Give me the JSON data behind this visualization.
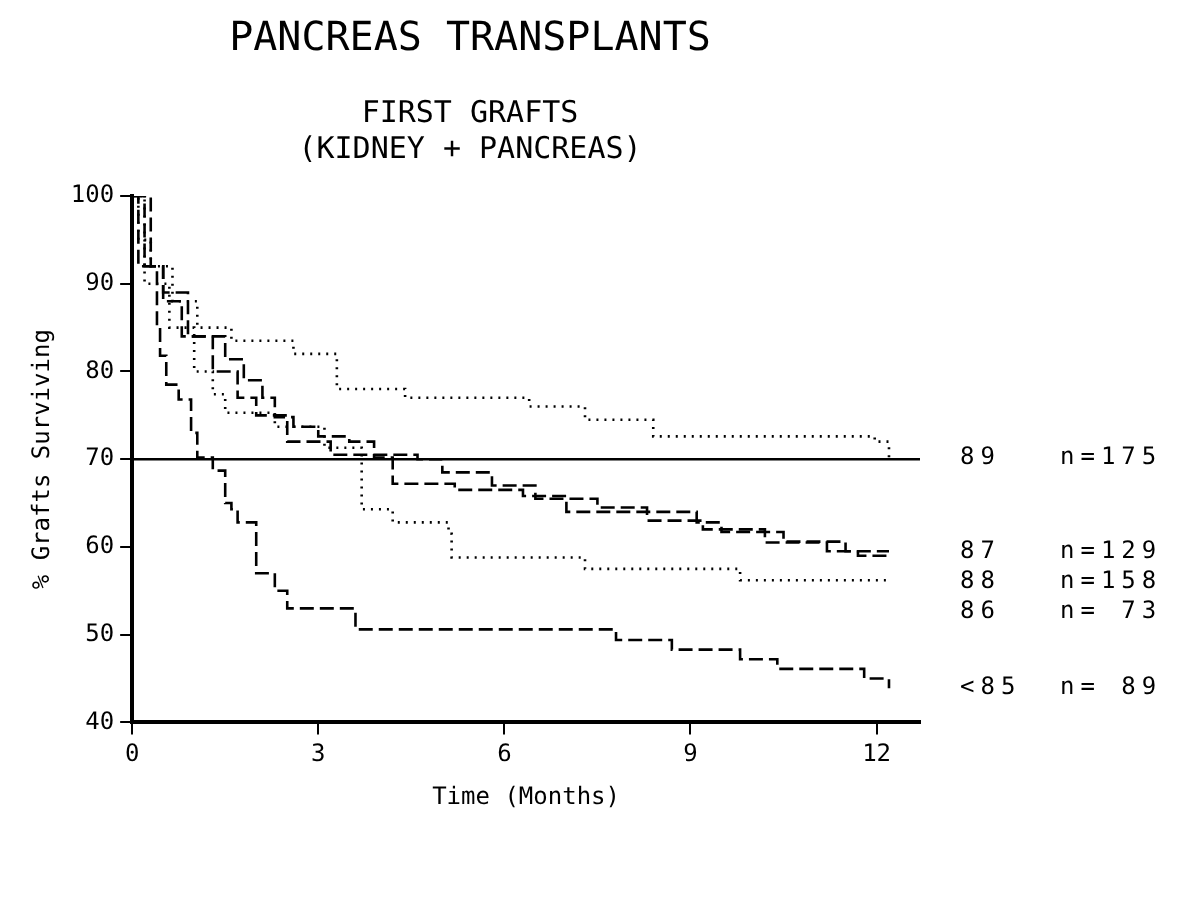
{
  "chart_data": {
    "type": "step",
    "title": "PANCREAS TRANSPLANTS",
    "subtitle": "FIRST GRAFTS\n(KIDNEY + PANCREAS)",
    "xlabel": "Time (Months)",
    "ylabel": "% Grafts Surviving",
    "xlim": [
      0,
      12.7
    ],
    "xticks": [
      0,
      3,
      6,
      9,
      12
    ],
    "ylim": [
      40,
      100
    ],
    "yticks": [
      40,
      50,
      60,
      70,
      80,
      90,
      100
    ],
    "grid": false,
    "legend": false,
    "marker": "none",
    "ref_lines": [
      {
        "axis": "y",
        "value": 70,
        "color": "#000000",
        "line_style": "solid"
      }
    ],
    "annotations": [
      "n=175",
      "n=129",
      "n=158",
      "n= 73",
      "n= 89"
    ],
    "series": [
      {
        "name": "89",
        "color": "#000000",
        "line_style": "dotted",
        "x": [
          0,
          0.1,
          0.3,
          0.65,
          1.05,
          1.6,
          2.6,
          3.3,
          4.4,
          6.4,
          7.3,
          8.4,
          11.97,
          12.2
        ],
        "values": [
          100,
          95,
          92,
          88,
          85,
          83.5,
          82,
          78,
          77,
          76,
          74.5,
          72.6,
          72,
          70.2
        ]
      },
      {
        "name": "87",
        "color": "#000000",
        "line_style": "dashed",
        "x": [
          0,
          0.3,
          0.5,
          0.9,
          1.5,
          1.8,
          2.1,
          2.3,
          2.6,
          3.0,
          3.5,
          3.9,
          4.2,
          5.2,
          6.3,
          7.0,
          9.1,
          9.5,
          10.5,
          11.5,
          12.2
        ],
        "values": [
          100,
          92,
          89,
          84,
          81.4,
          79,
          77,
          74.8,
          73.7,
          72.6,
          72,
          70.2,
          67.2,
          66.5,
          65.8,
          64,
          62.8,
          61.7,
          60.6,
          59.5,
          59.5
        ]
      },
      {
        "name": "88",
        "color": "#000000",
        "line_style": "dashed",
        "x": [
          0,
          0.2,
          0.5,
          0.8,
          1.3,
          1.7,
          2.0,
          2.5,
          3.2,
          4.6,
          5.0,
          5.8,
          6.5,
          7.5,
          8.3,
          9.2,
          10.2,
          11.2,
          11.7,
          12.2
        ],
        "values": [
          100,
          92,
          88,
          84,
          80,
          77,
          75,
          72,
          70.5,
          70,
          68.5,
          67,
          65.5,
          64.5,
          63,
          62,
          60.5,
          59.5,
          59,
          59
        ]
      },
      {
        "name": "86",
        "color": "#000000",
        "line_style": "dotted",
        "x": [
          0,
          0.2,
          0.6,
          1.0,
          1.3,
          1.5,
          2.3,
          3.1,
          3.7,
          4.2,
          5.1,
          5.15,
          7.3,
          9.8,
          12.2
        ],
        "values": [
          100,
          90,
          85,
          80,
          77.4,
          75.3,
          73.7,
          71.3,
          64.3,
          62.8,
          61.5,
          58.8,
          57.5,
          56.2,
          56.2
        ]
      },
      {
        "name": "<85",
        "color": "#000000",
        "line_style": "dashed",
        "x": [
          0,
          0.1,
          0.4,
          0.45,
          0.55,
          0.75,
          0.95,
          1.05,
          1.3,
          1.5,
          1.6,
          1.7,
          2.0,
          2.3,
          2.5,
          3.6,
          7.8,
          8.7,
          9.8,
          10.4,
          11.8,
          12.2
        ],
        "values": [
          100,
          92,
          85,
          81.8,
          78.5,
          76.8,
          73,
          70.2,
          68.7,
          65,
          64.3,
          62.8,
          57,
          55,
          53,
          50.6,
          49.4,
          48.3,
          47.2,
          46.1,
          45,
          43.9
        ]
      }
    ]
  }
}
